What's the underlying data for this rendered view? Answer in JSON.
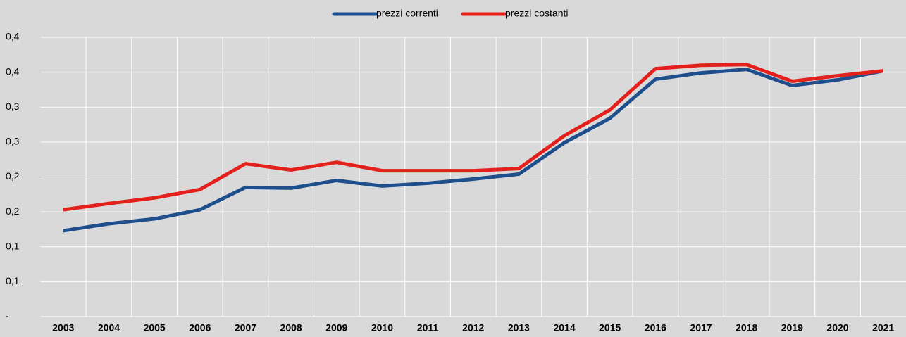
{
  "chart_data": {
    "type": "line",
    "categories": [
      "2003",
      "2004",
      "2005",
      "2006",
      "2007",
      "2008",
      "2009",
      "2010",
      "2011",
      "2012",
      "2013",
      "2014",
      "2015",
      "2016",
      "2017",
      "2018",
      "2019",
      "2020",
      "2021"
    ],
    "series": [
      {
        "name": "prezzi correnti",
        "color": "#1f4e8c",
        "values": [
          0.123,
          0.133,
          0.14,
          0.153,
          0.185,
          0.184,
          0.195,
          0.187,
          0.191,
          0.197,
          0.204,
          0.249,
          0.284,
          0.34,
          0.349,
          0.354,
          0.331,
          0.339,
          0.352
        ]
      },
      {
        "name": "prezzi costanti",
        "color": "#e3201b",
        "values": [
          0.153,
          0.162,
          0.17,
          0.182,
          0.219,
          0.21,
          0.221,
          0.209,
          0.209,
          0.209,
          0.212,
          0.259,
          0.296,
          0.355,
          0.36,
          0.361,
          0.337,
          0.345,
          0.352
        ]
      }
    ],
    "ylim": [
      0,
      0.4
    ],
    "yticks": [
      {
        "value": 0,
        "label": "-"
      },
      {
        "value": 0.05,
        "label": "0,1"
      },
      {
        "value": 0.1,
        "label": "0,1"
      },
      {
        "value": 0.15,
        "label": "0,2"
      },
      {
        "value": 0.2,
        "label": "0,2"
      },
      {
        "value": 0.25,
        "label": "0,3"
      },
      {
        "value": 0.3,
        "label": "0,3"
      },
      {
        "value": 0.35,
        "label": "0,4"
      },
      {
        "value": 0.4,
        "label": "0,4"
      }
    ],
    "grid": true,
    "legend": "top"
  }
}
